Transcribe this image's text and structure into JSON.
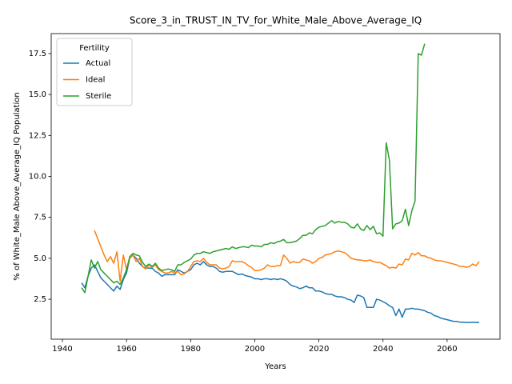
{
  "chart_data": {
    "type": "line",
    "title": "Score_3_in_TRUST_IN_TV_for_White_Male_Above_Average_IQ",
    "x_label": "Years",
    "y_label": "% of White_Male Above_Average_IQ Population",
    "legend_title": "Fertility",
    "legend_position": "upper left",
    "grid": false,
    "xlim": [
      1936.5,
      2076.5
    ],
    "ylim": [
      0.06,
      18.72
    ],
    "xticks": [
      1940,
      1960,
      1980,
      2000,
      2020,
      2040,
      2060
    ],
    "yticks": [
      2.5,
      {
        "value": 5,
        "label": "5.0"
      },
      7.5,
      {
        "value": 10,
        "label": "10.0"
      },
      12.5,
      {
        "value": 15,
        "label": "15.0"
      },
      17.5
    ],
    "x": [
      1946,
      1947,
      1948,
      1949,
      1950,
      1951,
      1952,
      1953,
      1954,
      1955,
      1956,
      1957,
      1958,
      1959,
      1960,
      1961,
      1962,
      1963,
      1964,
      1965,
      1966,
      1967,
      1968,
      1969,
      1970,
      1971,
      1972,
      1973,
      1974,
      1975,
      1976,
      1977,
      1978,
      1979,
      1980,
      1981,
      1982,
      1983,
      1984,
      1985,
      1986,
      1987,
      1988,
      1989,
      1990,
      1991,
      1992,
      1993,
      1994,
      1995,
      1996,
      1997,
      1998,
      1999,
      2000,
      2001,
      2002,
      2003,
      2004,
      2005,
      2006,
      2007,
      2008,
      2009,
      2010,
      2011,
      2012,
      2013,
      2014,
      2015,
      2016,
      2017,
      2018,
      2019,
      2020,
      2021,
      2022,
      2023,
      2024,
      2025,
      2026,
      2027,
      2028,
      2029,
      2030,
      2031,
      2032,
      2033,
      2034,
      2035,
      2036,
      2037,
      2038,
      2039,
      2040,
      2041,
      2042,
      2043,
      2044,
      2045,
      2046,
      2047,
      2048,
      2049,
      2050,
      2051,
      2052,
      2053,
      2054,
      2055,
      2056,
      2057,
      2058,
      2059,
      2060,
      2061,
      2062,
      2063,
      2064,
      2065,
      2066,
      2067,
      2068,
      2069,
      2070
    ],
    "series": [
      {
        "name": "Actual",
        "color": "#1f77b4",
        "values": [
          3.5,
          3.2,
          3.9,
          4.4,
          4.6,
          4.2,
          3.8,
          3.6,
          3.4,
          3.2,
          3.0,
          3.3,
          3.1,
          3.7,
          4.1,
          5.0,
          5.2,
          5.0,
          4.7,
          4.5,
          4.4,
          4.4,
          4.4,
          4.2,
          4.1,
          3.9,
          4.0,
          4.0,
          4.0,
          4.0,
          4.3,
          4.2,
          4.1,
          4.2,
          4.3,
          4.6,
          4.7,
          4.6,
          4.8,
          4.6,
          4.5,
          4.5,
          4.4,
          4.2,
          4.15,
          4.2,
          4.2,
          4.2,
          4.1,
          4.0,
          4.05,
          3.95,
          3.9,
          3.85,
          3.75,
          3.75,
          3.7,
          3.75,
          3.75,
          3.7,
          3.75,
          3.7,
          3.75,
          3.7,
          3.6,
          3.4,
          3.3,
          3.25,
          3.15,
          3.2,
          3.3,
          3.2,
          3.2,
          3.0,
          3.0,
          2.95,
          2.85,
          2.8,
          2.8,
          2.7,
          2.65,
          2.65,
          2.6,
          2.5,
          2.45,
          2.3,
          2.75,
          2.7,
          2.6,
          2.0,
          2.0,
          2.0,
          2.5,
          2.45,
          2.35,
          2.25,
          2.1,
          2.0,
          1.5,
          1.9,
          1.4,
          1.9,
          1.9,
          1.95,
          1.9,
          1.9,
          1.85,
          1.8,
          1.7,
          1.65,
          1.5,
          1.45,
          1.35,
          1.3,
          1.25,
          1.2,
          1.15,
          1.15,
          1.1,
          1.1,
          1.08,
          1.08,
          1.1,
          1.08,
          1.1
        ]
      },
      {
        "name": "Ideal",
        "color": "#ff7f0e",
        "values": [
          null,
          null,
          null,
          null,
          6.7,
          6.2,
          5.7,
          5.2,
          4.8,
          5.1,
          4.7,
          5.4,
          3.6,
          5.2,
          4.3,
          5.0,
          5.2,
          4.8,
          5.0,
          4.5,
          4.35,
          4.6,
          4.45,
          4.6,
          4.3,
          4.2,
          4.1,
          4.1,
          4.2,
          4.1,
          4.2,
          4.0,
          4.05,
          4.2,
          4.5,
          4.8,
          4.85,
          4.8,
          5.0,
          4.75,
          4.6,
          4.6,
          4.6,
          4.4,
          4.35,
          4.4,
          4.5,
          4.85,
          4.8,
          4.8,
          4.8,
          4.7,
          4.55,
          4.45,
          4.25,
          4.25,
          4.3,
          4.4,
          4.6,
          4.5,
          4.5,
          4.55,
          4.55,
          5.2,
          5.0,
          4.7,
          4.8,
          4.75,
          4.75,
          4.95,
          4.9,
          4.85,
          4.7,
          4.8,
          5.0,
          5.05,
          5.2,
          5.25,
          5.3,
          5.4,
          5.45,
          5.4,
          5.35,
          5.2,
          5.0,
          4.95,
          4.9,
          4.9,
          4.85,
          4.85,
          4.9,
          4.8,
          4.75,
          4.75,
          4.65,
          4.55,
          4.4,
          4.45,
          4.4,
          4.65,
          4.6,
          4.95,
          4.9,
          5.3,
          5.2,
          5.35,
          5.15,
          5.15,
          5.05,
          5.0,
          4.9,
          4.85,
          4.85,
          4.8,
          4.75,
          4.7,
          4.65,
          4.6,
          4.5,
          4.5,
          4.45,
          4.5,
          4.65,
          4.55,
          4.8
        ]
      },
      {
        "name": "Sterile",
        "color": "#2ca02c",
        "values": [
          3.2,
          2.9,
          3.9,
          4.9,
          4.4,
          4.8,
          4.3,
          4.1,
          3.9,
          3.7,
          3.5,
          3.6,
          3.4,
          3.8,
          4.3,
          5.1,
          5.3,
          5.2,
          5.15,
          4.75,
          4.5,
          4.65,
          4.5,
          4.7,
          4.4,
          4.25,
          4.3,
          4.35,
          4.3,
          4.2,
          4.6,
          4.6,
          4.75,
          4.85,
          4.95,
          5.2,
          5.3,
          5.3,
          5.4,
          5.35,
          5.3,
          5.4,
          5.45,
          5.5,
          5.55,
          5.6,
          5.55,
          5.7,
          5.6,
          5.65,
          5.7,
          5.7,
          5.65,
          5.8,
          5.75,
          5.75,
          5.7,
          5.85,
          5.85,
          5.95,
          5.9,
          6.0,
          6.05,
          6.15,
          5.95,
          5.95,
          6.0,
          6.05,
          6.2,
          6.4,
          6.4,
          6.55,
          6.5,
          6.75,
          6.9,
          6.95,
          7.0,
          7.15,
          7.3,
          7.15,
          7.25,
          7.2,
          7.2,
          7.1,
          6.9,
          6.85,
          7.1,
          6.8,
          6.7,
          7.0,
          6.75,
          6.95,
          6.5,
          6.55,
          6.35,
          12.05,
          11.0,
          6.8,
          7.1,
          7.15,
          7.3,
          8.0,
          7.0,
          7.9,
          8.5,
          17.5,
          17.4,
          18.1,
          null,
          null,
          null,
          null,
          null,
          null,
          null,
          null,
          null,
          null,
          null,
          null,
          null,
          null,
          null,
          null,
          null
        ]
      }
    ]
  }
}
